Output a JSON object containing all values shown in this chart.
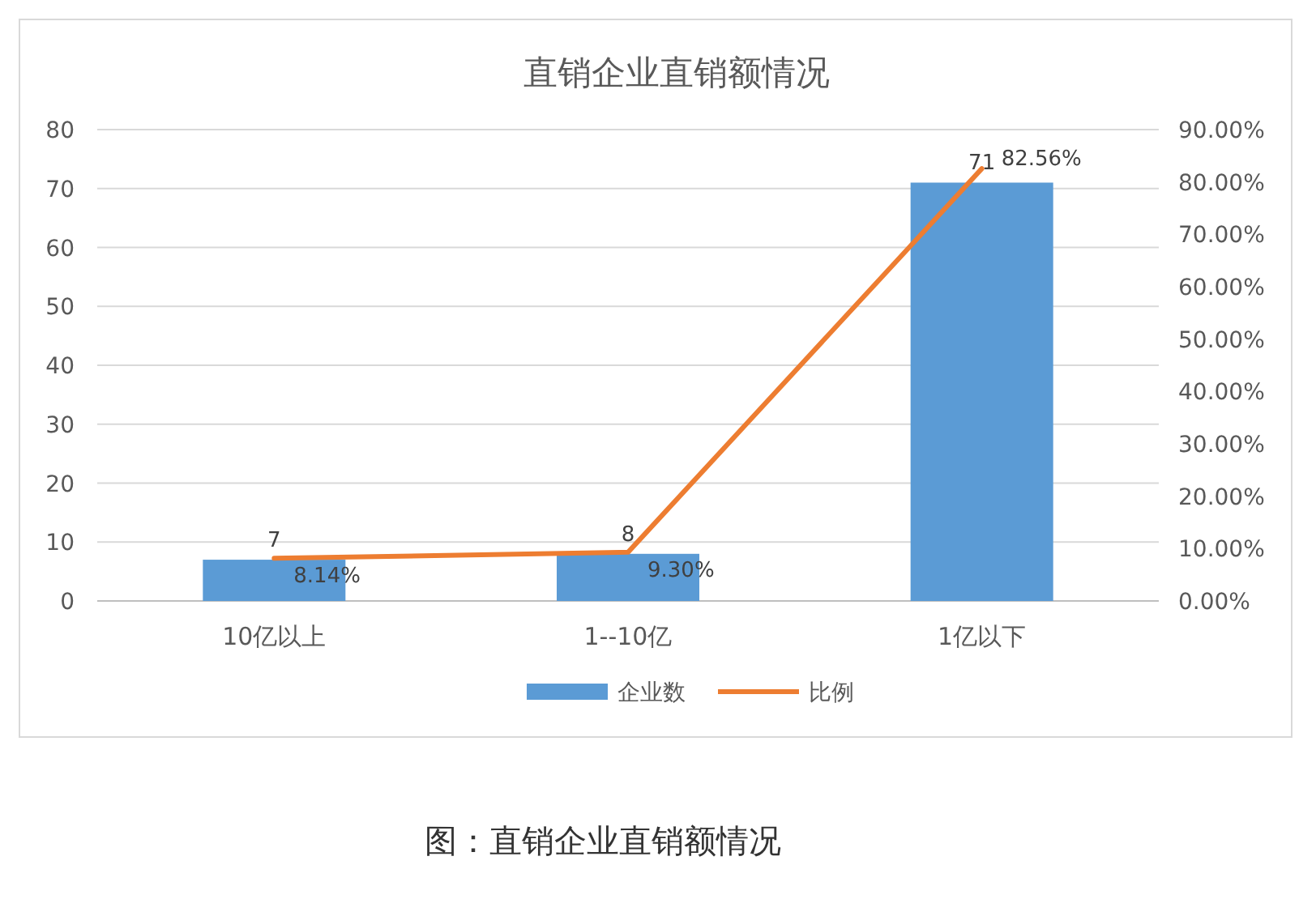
{
  "chart_data": {
    "type": "bar",
    "title": "直销企业直销额情况",
    "categories": [
      "10亿以上",
      "1--10亿",
      "1亿以下"
    ],
    "series": [
      {
        "name": "企业数",
        "color": "#5b9bd5",
        "values": [
          7,
          8,
          71
        ],
        "value_labels": [
          "7",
          "8",
          "71"
        ]
      },
      {
        "name": "比例",
        "type": "line",
        "axis": "y2",
        "color": "#ed7d31",
        "values": [
          8.14,
          9.3,
          82.56
        ],
        "value_labels": [
          "8.14%",
          "9.30%",
          "82.56%"
        ]
      }
    ],
    "ylim": [
      0,
      80
    ],
    "yticks": [
      0,
      10,
      20,
      30,
      40,
      50,
      60,
      70,
      80
    ],
    "y2lim": [
      0,
      90
    ],
    "y2ticks": [
      {
        "value": 0,
        "label": "0.00%"
      },
      {
        "value": 10,
        "label": "10.00%"
      },
      {
        "value": 20,
        "label": "20.00%"
      },
      {
        "value": 30,
        "label": "30.00%"
      },
      {
        "value": 40,
        "label": "40.00%"
      },
      {
        "value": 50,
        "label": "50.00%"
      },
      {
        "value": 60,
        "label": "60.00%"
      },
      {
        "value": 70,
        "label": "70.00%"
      },
      {
        "value": 80,
        "label": "80.00%"
      },
      {
        "value": 90,
        "label": "90.00%"
      }
    ],
    "grid": "y",
    "legend": "bottom",
    "annotations": [
      "图：直销企业直销额情况"
    ]
  }
}
